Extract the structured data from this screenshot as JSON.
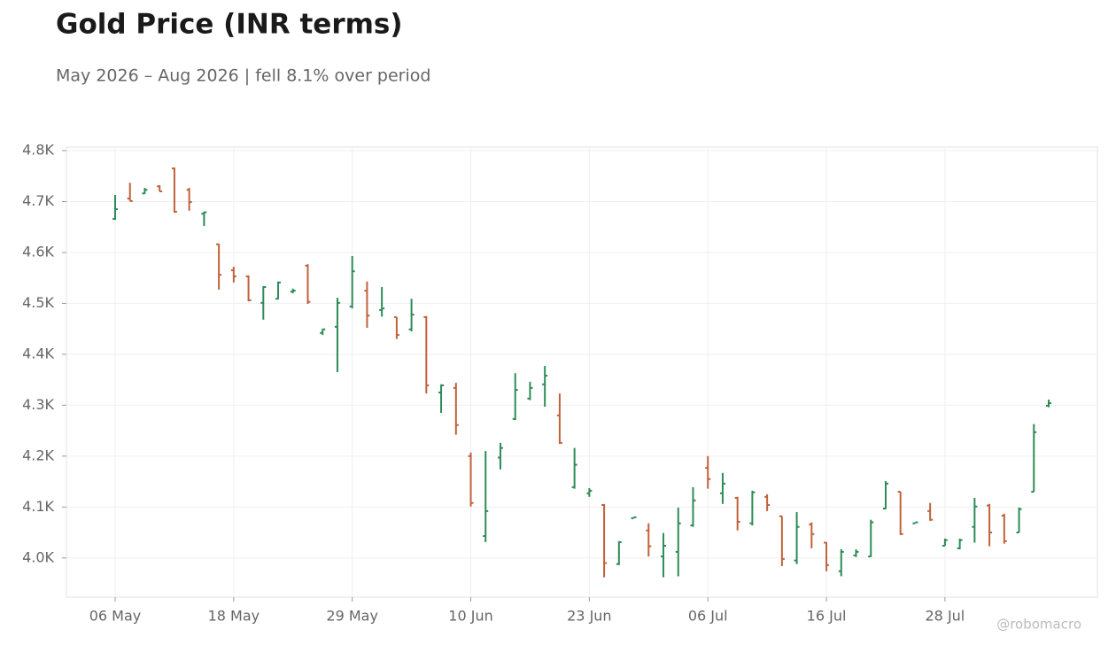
{
  "chart_data": {
    "type": "ohlc",
    "title": "Gold Price (INR terms)",
    "subtitle": "May 2026 – Aug 2026 | fell 8.1% over period",
    "watermark": "@robomacro",
    "categories": [
      "06 May",
      null,
      null,
      null,
      null,
      null,
      null,
      null,
      "18 May",
      null,
      null,
      null,
      null,
      null,
      null,
      null,
      "29 May",
      null,
      null,
      null,
      null,
      null,
      null,
      null,
      "10 Jun",
      null,
      null,
      null,
      null,
      null,
      null,
      null,
      "23 Jun",
      null,
      null,
      null,
      null,
      null,
      null,
      null,
      "06 Jul",
      null,
      null,
      null,
      null,
      null,
      null,
      null,
      "16 Jul",
      null,
      null,
      null,
      null,
      null,
      null,
      null,
      "28 Jul",
      null,
      null,
      null,
      null,
      null,
      null,
      null
    ],
    "open": [
      4666,
      4706,
      4716,
      4730,
      4765,
      4723,
      4676,
      4616,
      4565,
      4553,
      4501,
      4509,
      4523,
      4574,
      4442,
      4454,
      4494,
      4525,
      4487,
      4473,
      4449,
      4473,
      4325,
      4334,
      4200,
      4043,
      4197,
      4273,
      4313,
      4341,
      4280,
      4139,
      4127,
      4104,
      3988,
      4078,
      4054,
      4003,
      4012,
      4064,
      4177,
      4127,
      4118,
      4068,
      4120,
      4082,
      3995,
      4066,
      4030,
      3974,
      4005,
      4003,
      4097,
      4130,
      4068,
      4092,
      4024,
      4019,
      4061,
      4103,
      4083,
      4050,
      4130,
      4299
    ],
    "high": [
      4713,
      4737,
      4727,
      4732,
      4767,
      4727,
      4680,
      4617,
      4572,
      4555,
      4534,
      4543,
      4529,
      4577,
      4450,
      4511,
      4593,
      4543,
      4532,
      4473,
      4509,
      4475,
      4341,
      4344,
      4207,
      4210,
      4226,
      4363,
      4346,
      4377,
      4323,
      4216,
      4137,
      4106,
      4033,
      4080,
      4068,
      4049,
      4099,
      4139,
      4200,
      4167,
      4120,
      4132,
      4125,
      4082,
      4090,
      4070,
      4031,
      4017,
      4017,
      4075,
      4151,
      4130,
      4070,
      4108,
      4038,
      4038,
      4118,
      4106,
      4087,
      4099,
      4263,
      4311
    ],
    "low": [
      4664,
      4701,
      4715,
      4720,
      4678,
      4682,
      4652,
      4527,
      4541,
      4504,
      4468,
      4508,
      4520,
      4499,
      4438,
      4365,
      4490,
      4452,
      4474,
      4430,
      4445,
      4323,
      4285,
      4242,
      4101,
      4031,
      4174,
      4271,
      4310,
      4297,
      4224,
      4136,
      4120,
      3962,
      3986,
      4078,
      4003,
      3962,
      3964,
      4061,
      4136,
      4106,
      4054,
      4064,
      4092,
      3984,
      3988,
      4019,
      3974,
      3964,
      4002,
      4002,
      4096,
      4045,
      4068,
      4073,
      4024,
      4017,
      4030,
      4023,
      4028,
      4050,
      4130,
      4296
    ],
    "close": [
      4685,
      4701,
      4723,
      4720,
      4680,
      4699,
      4679,
      4556,
      4553,
      4506,
      4532,
      4541,
      4525,
      4503,
      4449,
      4501,
      4563,
      4476,
      4490,
      4438,
      4478,
      4339,
      4339,
      4261,
      4108,
      4092,
      4216,
      4330,
      4334,
      4358,
      4226,
      4183,
      4132,
      3990,
      4031,
      4080,
      4023,
      4024,
      4068,
      4113,
      4155,
      4146,
      4071,
      4129,
      4104,
      3998,
      4061,
      4047,
      3986,
      4012,
      4012,
      4070,
      4146,
      4047,
      4070,
      4075,
      4035,
      4035,
      4101,
      4050,
      4033,
      4096,
      4247,
      4304
    ],
    "up_color": "#2e8b57",
    "down_color": "#c0623a",
    "ylim": [
      3923,
      4807
    ],
    "yticks": [
      {
        "value": 4000,
        "label": "4.0K"
      },
      {
        "value": 4100,
        "label": "4.1K"
      },
      {
        "value": 4200,
        "label": "4.2K"
      },
      {
        "value": 4300,
        "label": "4.3K"
      },
      {
        "value": 4400,
        "label": "4.4K"
      },
      {
        "value": 4500,
        "label": "4.5K"
      },
      {
        "value": 4600,
        "label": "4.6K"
      },
      {
        "value": 4700,
        "label": "4.7K"
      },
      {
        "value": 4800,
        "label": "4.8K"
      }
    ],
    "grid": true
  }
}
